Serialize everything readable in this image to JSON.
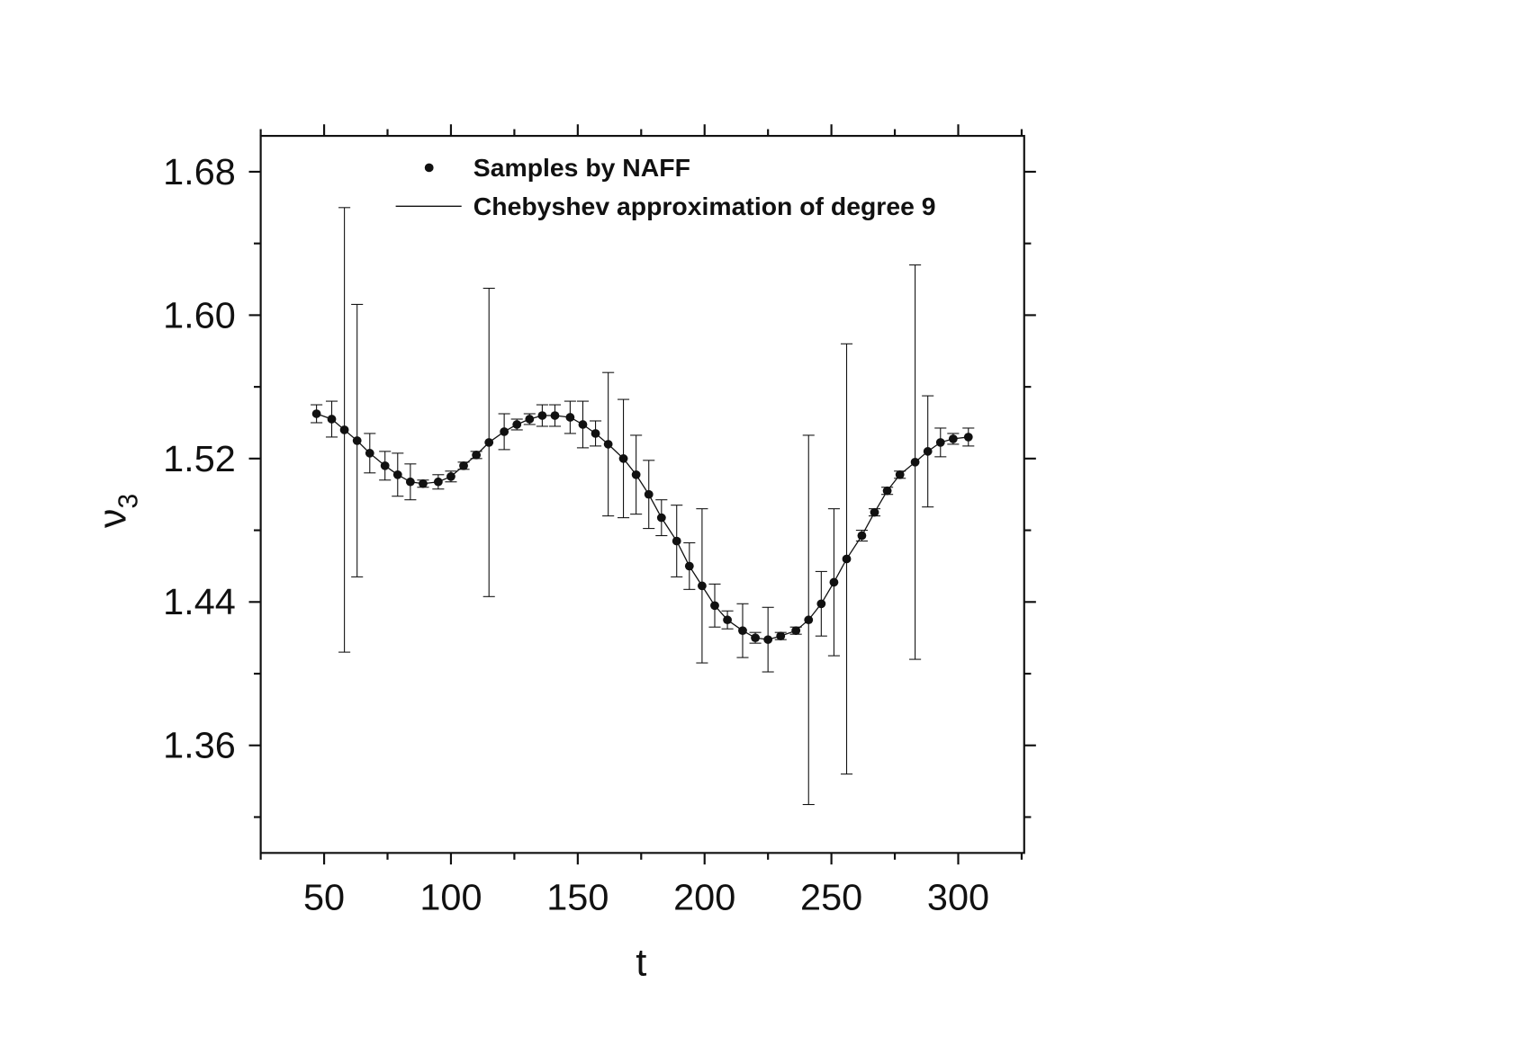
{
  "chart_data": {
    "type": "scatter",
    "xlabel": "t",
    "ylabel": "ν",
    "ylabel_sub": "3",
    "xlim": [
      25,
      326
    ],
    "ylim": [
      1.3,
      1.7
    ],
    "xticks": [
      50,
      100,
      150,
      200,
      250,
      300
    ],
    "yticks": [
      {
        "value": 1.36,
        "label": "1.36"
      },
      {
        "value": 1.44,
        "label": "1.44"
      },
      {
        "value": 1.52,
        "label": "1.52"
      },
      {
        "value": 1.6,
        "label": "1.60"
      },
      {
        "value": 1.68,
        "label": "1.68"
      }
    ],
    "xminorticks": [
      25,
      75,
      125,
      175,
      225,
      275,
      325
    ],
    "yminorticks": [
      1.32,
      1.4,
      1.48,
      1.56,
      1.64
    ],
    "legend": "top",
    "x": [
      47,
      53,
      58,
      63,
      68,
      74,
      79,
      84,
      89,
      95,
      100,
      105,
      110,
      115,
      121,
      126,
      131,
      136,
      141,
      147,
      152,
      157,
      162,
      168,
      173,
      178,
      183,
      189,
      194,
      199,
      204,
      209,
      215,
      220,
      225,
      230,
      236,
      241,
      246,
      251,
      256,
      262,
      267,
      272,
      277,
      283,
      288,
      293,
      298,
      304
    ],
    "series": [
      {
        "name": "Samples by NAFF",
        "color": "#111111",
        "style": "points",
        "values": [
          1.545,
          1.542,
          1.536,
          1.53,
          1.523,
          1.516,
          1.511,
          1.507,
          1.506,
          1.507,
          1.51,
          1.516,
          1.522,
          1.529,
          1.535,
          1.539,
          1.542,
          1.544,
          1.544,
          1.543,
          1.539,
          1.534,
          1.528,
          1.52,
          1.511,
          1.5,
          1.487,
          1.474,
          1.46,
          1.449,
          1.438,
          1.43,
          1.424,
          1.42,
          1.419,
          1.421,
          1.424,
          1.43,
          1.439,
          1.451,
          1.464,
          1.477,
          1.49,
          1.502,
          1.511,
          1.518,
          1.524,
          1.529,
          1.531,
          1.532
        ],
        "errors": [
          0.005,
          0.01,
          0.124,
          0.076,
          0.011,
          0.008,
          0.012,
          0.01,
          0.002,
          0.004,
          0.003,
          0.002,
          0.002,
          0.086,
          0.01,
          0.003,
          0.003,
          0.006,
          0.006,
          0.009,
          0.013,
          0.007,
          0.04,
          0.033,
          0.022,
          0.019,
          0.01,
          0.02,
          0.013,
          0.043,
          0.012,
          0.005,
          0.015,
          0.003,
          0.018,
          0.002,
          0.002,
          0.103,
          0.018,
          0.041,
          0.12,
          0.003,
          0.002,
          0.002,
          0.002,
          0.11,
          0.031,
          0.008,
          0.003,
          0.005
        ]
      },
      {
        "name": "Chebyshev approximation of degree 9",
        "color": "#111111",
        "style": "line",
        "values": [
          1.545,
          1.542,
          1.536,
          1.53,
          1.523,
          1.516,
          1.511,
          1.507,
          1.506,
          1.507,
          1.51,
          1.516,
          1.522,
          1.529,
          1.535,
          1.539,
          1.542,
          1.544,
          1.544,
          1.543,
          1.539,
          1.534,
          1.528,
          1.52,
          1.511,
          1.5,
          1.487,
          1.474,
          1.46,
          1.449,
          1.438,
          1.43,
          1.424,
          1.42,
          1.419,
          1.421,
          1.424,
          1.43,
          1.439,
          1.451,
          1.464,
          1.477,
          1.49,
          1.502,
          1.511,
          1.518,
          1.524,
          1.529,
          1.531,
          1.532
        ]
      }
    ]
  }
}
